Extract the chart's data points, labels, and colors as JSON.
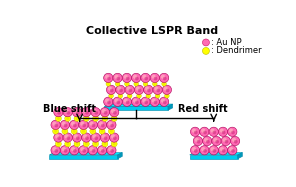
{
  "title": "Collective LSPR Band",
  "title_fontsize": 8,
  "title_fontweight": "bold",
  "bg_color": "#ffffff",
  "legend_au_np_color": "#FF69B4",
  "legend_dendrimer_color": "#FFFF00",
  "legend_au_label": ": Au NP",
  "legend_dendrimer_label": ": Dendrimer",
  "blue_shift_label": "Blue shift",
  "red_shift_label": "Red shift",
  "substrate_color_main": "#00CCEE",
  "substrate_color_top": "#00EEFF",
  "substrate_color_side": "#0099BB",
  "au_np_color_outer": "#FF69B4",
  "au_np_color_inner": "#CC1166",
  "au_np_color_highlight": "#FFB6C1",
  "au_np_color_dark": "#AA0055",
  "dendrimer_color": "#FFFF00",
  "dendrimer_color2": "#EEEE00",
  "dendrimer_stroke": "#BBBB00",
  "arrow_color": "#000000",
  "label_fontsize": 7,
  "label_fontweight": "bold",
  "legend_fontsize": 6
}
